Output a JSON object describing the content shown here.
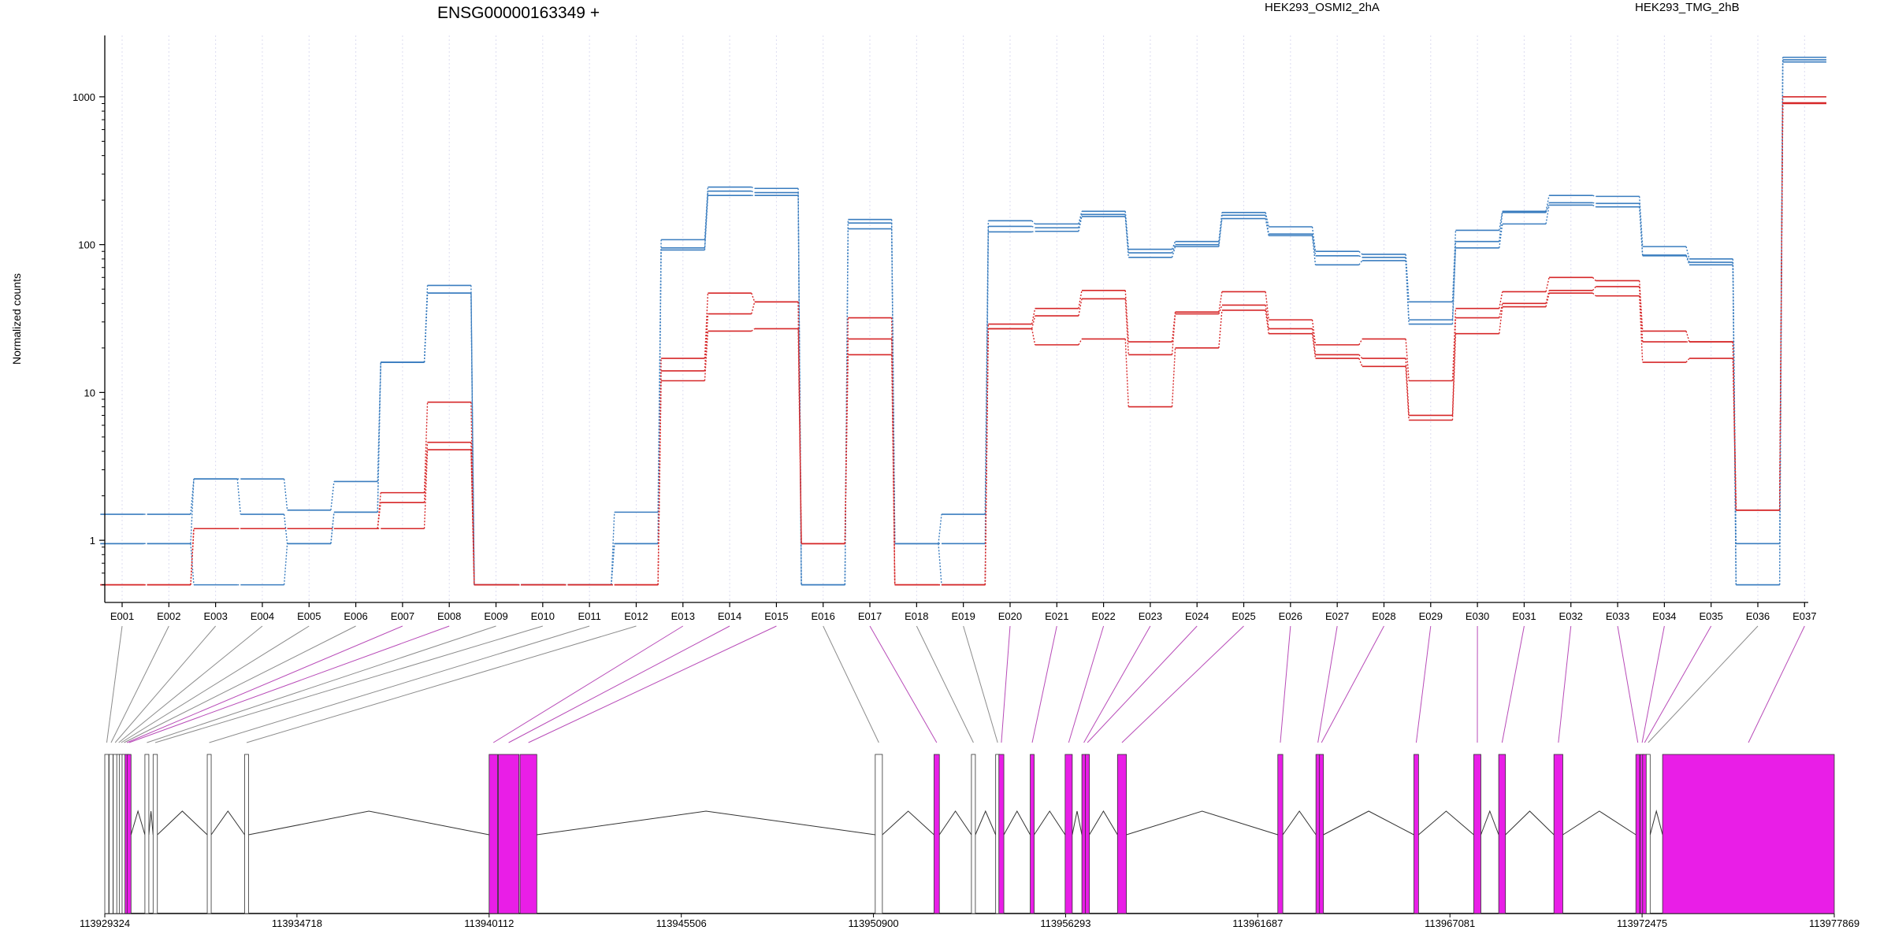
{
  "chart_data": {
    "type": "line",
    "title": "ENSG00000163349 +",
    "ylabel": "Normalized counts",
    "y_scale": "log",
    "yticks": [
      1,
      10,
      100,
      1000
    ],
    "ylim": [
      0.38,
      2600
    ],
    "grid": "vertical dotted lines per exon",
    "legend": [
      {
        "name": "HEK293_OSMI2_2hA",
        "color": "#d62728"
      },
      {
        "name": "HEK293_TMG_2hB",
        "color": "#3a7dbf"
      }
    ],
    "categories": [
      "E001",
      "E002",
      "E003",
      "E004",
      "E005",
      "E006",
      "E007",
      "E008",
      "E009",
      "E010",
      "E011",
      "E012",
      "E013",
      "E014",
      "E015",
      "E016",
      "E017",
      "E018",
      "E019",
      "E020",
      "E021",
      "E022",
      "E023",
      "E024",
      "E025",
      "E026",
      "E027",
      "E028",
      "E029",
      "E030",
      "E031",
      "E032",
      "E033",
      "E034",
      "E035",
      "E036",
      "E037"
    ],
    "series": [
      {
        "group": "HEK293_TMG_2hB",
        "color": "#3a7dbf",
        "values": [
          1.5,
          1.5,
          2.6,
          2.6,
          1.6,
          2.5,
          16,
          53,
          0.5,
          0.5,
          0.5,
          1.55,
          108,
          245,
          240,
          0.5,
          148,
          0.95,
          1.5,
          145,
          138,
          168,
          93,
          105,
          165,
          132,
          90,
          86,
          41,
          125,
          168,
          215,
          212,
          97,
          80,
          0.95,
          1850
        ]
      },
      {
        "group": "HEK293_TMG_2hB",
        "color": "#3a7dbf",
        "values": [
          0.95,
          0.95,
          2.6,
          1.5,
          0.95,
          1.55,
          16,
          47,
          0.5,
          0.5,
          0.5,
          0.95,
          95,
          230,
          225,
          0.5,
          140,
          0.95,
          0.95,
          133,
          130,
          160,
          88,
          100,
          158,
          118,
          84,
          82,
          31,
          105,
          165,
          192,
          190,
          85,
          76,
          0.5,
          1780
        ]
      },
      {
        "group": "HEK293_TMG_2hB",
        "color": "#3a7dbf",
        "values": [
          0.95,
          0.95,
          0.5,
          0.5,
          0.95,
          1.55,
          16,
          47,
          0.5,
          0.5,
          0.5,
          0.95,
          92,
          215,
          215,
          0.5,
          128,
          0.95,
          0.5,
          122,
          123,
          155,
          82,
          97,
          150,
          115,
          73,
          78,
          29,
          95,
          138,
          185,
          180,
          84,
          73,
          0.5,
          1720
        ]
      },
      {
        "group": "HEK293_OSMI2_2hA",
        "color": "#d62728",
        "values": [
          0.5,
          0.5,
          1.2,
          1.2,
          1.2,
          1.2,
          2.1,
          8.6,
          0.5,
          0.5,
          0.5,
          0.5,
          17,
          47,
          41,
          0.95,
          32,
          0.5,
          0.5,
          29,
          37,
          49,
          22,
          35,
          48,
          31,
          21,
          23,
          12,
          37,
          48,
          60,
          57,
          26,
          22,
          1.6,
          1000
        ]
      },
      {
        "group": "HEK293_OSMI2_2hA",
        "color": "#d62728",
        "values": [
          0.5,
          0.5,
          1.2,
          1.2,
          1.2,
          1.2,
          1.8,
          4.6,
          0.5,
          0.5,
          0.5,
          0.5,
          14,
          34,
          41,
          0.95,
          23,
          0.5,
          0.5,
          27,
          33,
          43,
          18,
          34,
          39,
          27,
          18,
          17,
          7.0,
          32,
          40,
          49,
          52,
          22,
          22,
          1.6,
          910
        ]
      },
      {
        "group": "HEK293_OSMI2_2hA",
        "color": "#d62728",
        "values": [
          0.5,
          0.5,
          1.2,
          1.2,
          1.2,
          1.2,
          1.2,
          4.1,
          0.5,
          0.5,
          0.5,
          0.5,
          12,
          26,
          27,
          0.95,
          18,
          0.5,
          0.5,
          27,
          21,
          23,
          8,
          20,
          36,
          25,
          17,
          15,
          6.5,
          25,
          38,
          47,
          45,
          16,
          17,
          1.6,
          900
        ]
      }
    ],
    "exon_type": [
      "non-DE",
      "non-DE",
      "non-DE",
      "non-DE",
      "non-DE",
      "non-DE",
      "DE",
      "DE",
      "non-DE",
      "non-DE",
      "non-DE",
      "non-DE",
      "DE",
      "DE",
      "DE",
      "non-DE",
      "DE",
      "non-DE",
      "non-DE",
      "DE",
      "DE",
      "DE",
      "DE",
      "DE",
      "DE",
      "DE",
      "DE",
      "DE",
      "DE",
      "DE",
      "DE",
      "DE",
      "DE",
      "DE",
      "DE",
      "non-DE",
      "DE"
    ],
    "gene_model": {
      "coordinate_ticks": [
        "113929324",
        "113934718",
        "113940112",
        "113945506",
        "113950900",
        "113956293",
        "113961687",
        "113967081",
        "113972475",
        "113977869"
      ],
      "range": [
        113929324,
        113977869
      ],
      "exon_fill_de": "#e91ee7",
      "exon_fill_other": "#ffffff",
      "exons": [
        {
          "id": "E001",
          "start": 113929324,
          "end": 113929410
        },
        {
          "id": "E002",
          "start": 113929445,
          "end": 113929530
        },
        {
          "id": "E003",
          "start": 113929560,
          "end": 113929640
        },
        {
          "id": "E004",
          "start": 113929660,
          "end": 113929720
        },
        {
          "id": "E005",
          "start": 113929730,
          "end": 113929800
        },
        {
          "id": "E006",
          "start": 113929810,
          "end": 113929880
        },
        {
          "id": "E007",
          "start": 113929890,
          "end": 113929935
        },
        {
          "id": "E008",
          "start": 113929950,
          "end": 113930010
        },
        {
          "id": "E009",
          "start": 113930450,
          "end": 113930560
        },
        {
          "id": "E010",
          "start": 113930680,
          "end": 113930800
        },
        {
          "id": "E011",
          "start": 113932200,
          "end": 113932250
        },
        {
          "id": "E012",
          "start": 113933250,
          "end": 113933330
        },
        {
          "id": "E013",
          "start": 113940112,
          "end": 113940350
        },
        {
          "id": "E014",
          "start": 113940370,
          "end": 113940950
        },
        {
          "id": "E015",
          "start": 113940980,
          "end": 113941450
        },
        {
          "id": "E016",
          "start": 113950950,
          "end": 113951150
        },
        {
          "id": "E017",
          "start": 113952600,
          "end": 113952750
        },
        {
          "id": "E018",
          "start": 113953650,
          "end": 113953700
        },
        {
          "id": "E019",
          "start": 113954330,
          "end": 113954380
        },
        {
          "id": "E020",
          "start": 113954420,
          "end": 113954560
        },
        {
          "id": "E021",
          "start": 113955300,
          "end": 113955410
        },
        {
          "id": "E022",
          "start": 113956280,
          "end": 113956480
        },
        {
          "id": "E023",
          "start": 113956750,
          "end": 113956830
        },
        {
          "id": "E024",
          "start": 113956850,
          "end": 113956930
        },
        {
          "id": "E025",
          "start": 113957750,
          "end": 113958000
        },
        {
          "id": "E026",
          "start": 113962250,
          "end": 113962390
        },
        {
          "id": "E027",
          "start": 113963320,
          "end": 113963400
        },
        {
          "id": "E028",
          "start": 113963420,
          "end": 113963480
        },
        {
          "id": "E029",
          "start": 113966070,
          "end": 113966200
        },
        {
          "id": "E030",
          "start": 113967750,
          "end": 113967950
        },
        {
          "id": "E031",
          "start": 113968450,
          "end": 113968640
        },
        {
          "id": "E032",
          "start": 113970000,
          "end": 113970250
        },
        {
          "id": "E033",
          "start": 113972300,
          "end": 113972400
        },
        {
          "id": "E034",
          "start": 113972420,
          "end": 113972480
        },
        {
          "id": "E035",
          "start": 113972490,
          "end": 113972580
        },
        {
          "id": "E036",
          "start": 113972590,
          "end": 113972640
        },
        {
          "id": "E037",
          "start": 113973050,
          "end": 113977869
        }
      ]
    }
  }
}
